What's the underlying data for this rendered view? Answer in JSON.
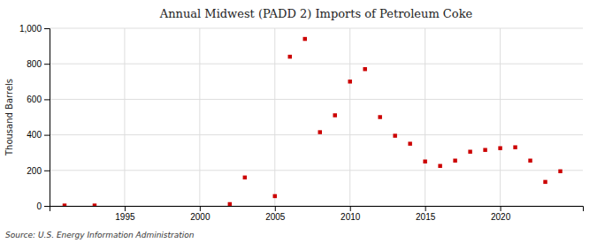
{
  "chart_data": {
    "type": "scatter",
    "title": "Annual Midwest (PADD 2) Imports of Petroleum Coke",
    "ylabel": "Thousand Barrels",
    "annotation": "Source: U.S. Energy Information Administration",
    "x": [
      1991,
      1993,
      2002,
      2003,
      2005,
      2006,
      2007,
      2008,
      2009,
      2010,
      2011,
      2012,
      2013,
      2014,
      2015,
      2016,
      2017,
      2018,
      2019,
      2020,
      2021,
      2022,
      2023,
      2024
    ],
    "values": [
      2,
      2,
      10,
      160,
      55,
      840,
      940,
      415,
      510,
      700,
      770,
      500,
      395,
      350,
      250,
      225,
      255,
      305,
      315,
      325,
      330,
      255,
      135,
      195
    ],
    "color": "#cc0000",
    "marker": "square",
    "xlim": [
      1990,
      2025.5
    ],
    "xticks": [
      1995,
      2000,
      2005,
      2010,
      2015,
      2020
    ],
    "ylim": [
      0,
      1000
    ],
    "yticks": [
      0,
      200,
      400,
      600,
      800,
      {
        "value": 1000,
        "label": "1,000"
      }
    ],
    "grid": true
  }
}
